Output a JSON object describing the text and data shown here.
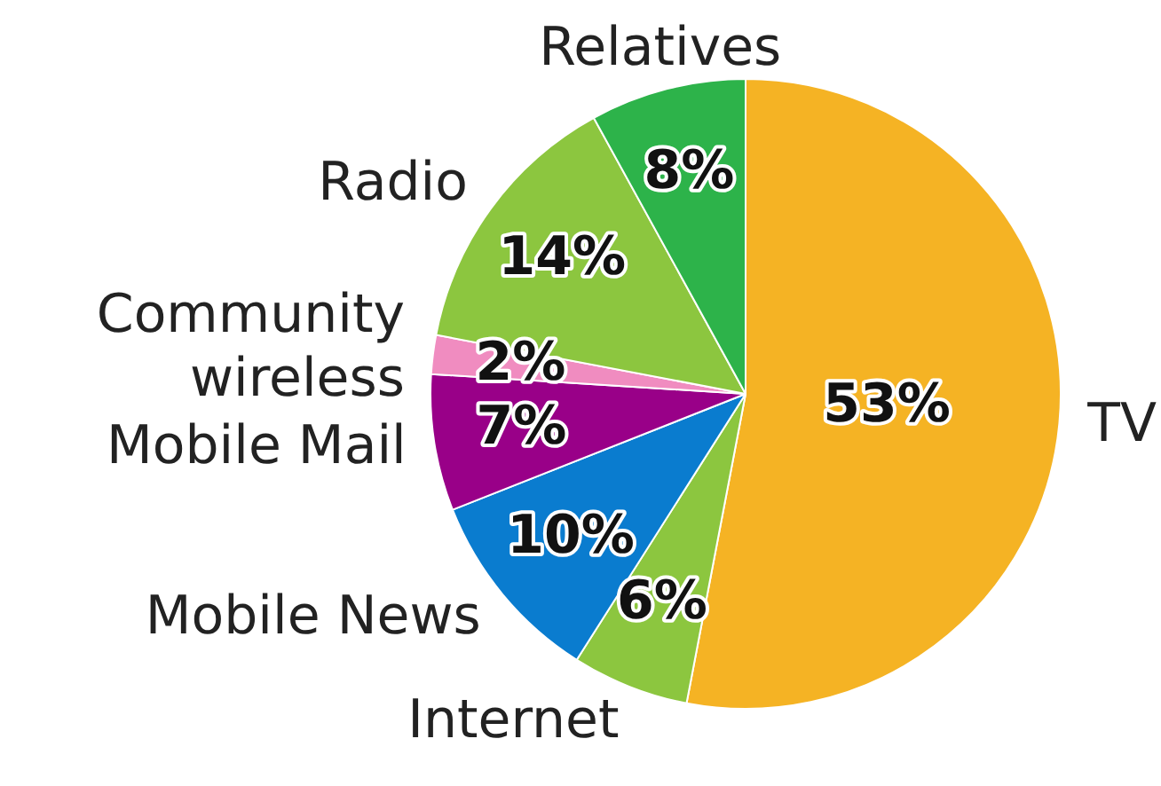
{
  "chart_data": {
    "type": "pie",
    "categories": [
      "TV",
      "Internet",
      "Mobile News",
      "Mobile Mail",
      "Community wireless",
      "Radio",
      "Relatives"
    ],
    "values": [
      53,
      6,
      10,
      7,
      2,
      14,
      8
    ],
    "colors": [
      "#f5b324",
      "#8cc63f",
      "#0a7ccf",
      "#990088",
      "#f08cc0",
      "#8cc63f",
      "#2db34a"
    ],
    "value_labels": [
      "53%",
      "6%",
      "10%",
      "7%",
      "2%",
      "14%",
      "8%"
    ],
    "legend": false
  }
}
